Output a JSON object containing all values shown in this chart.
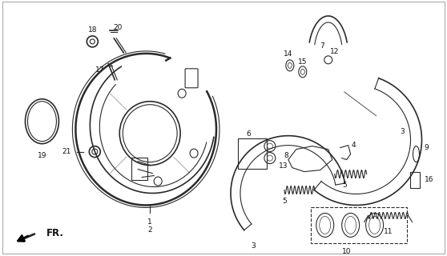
{
  "background_color": "#ffffff",
  "fig_width": 5.58,
  "fig_height": 3.2,
  "dpi": 100,
  "line_color": "#2a2a2a",
  "text_color": "#111111",
  "font_size": 6.5,
  "font_size_fr": 8.5
}
